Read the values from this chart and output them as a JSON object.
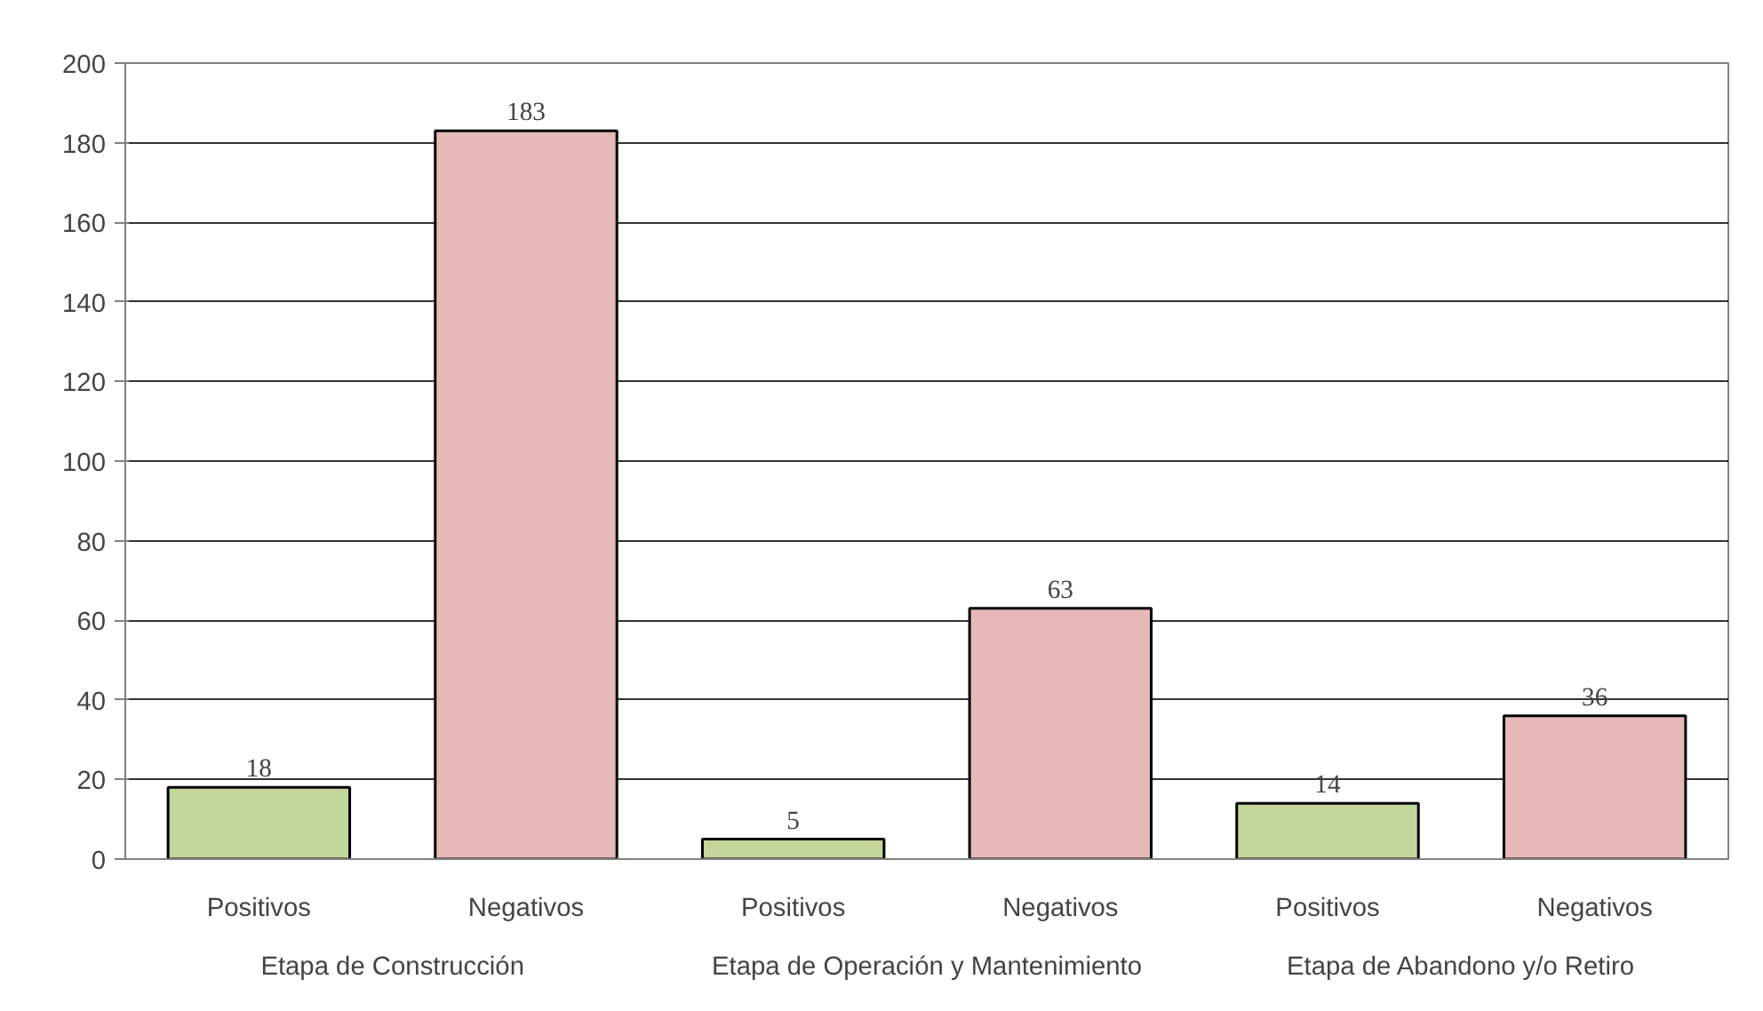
{
  "chart_data": {
    "type": "bar",
    "categories": [
      "Positivos",
      "Negativos",
      "Positivos",
      "Negativos",
      "Positivos",
      "Negativos"
    ],
    "values": [
      18,
      183,
      5,
      63,
      14,
      36
    ],
    "colors": [
      "#c3d69b",
      "#e6b9b8",
      "#c3d69b",
      "#e6b9b8",
      "#c3d69b",
      "#e6b9b8"
    ],
    "annotations": [
      "Etapa de Construcción",
      "Etapa de Operación y Mantenimiento",
      "Etapa de Abandono y/o Retiro"
    ],
    "ylim": [
      0,
      200
    ],
    "yticks": [
      0,
      20,
      40,
      60,
      80,
      100,
      120,
      140,
      160,
      180,
      200
    ],
    "grid": "y",
    "data_labels": true
  }
}
